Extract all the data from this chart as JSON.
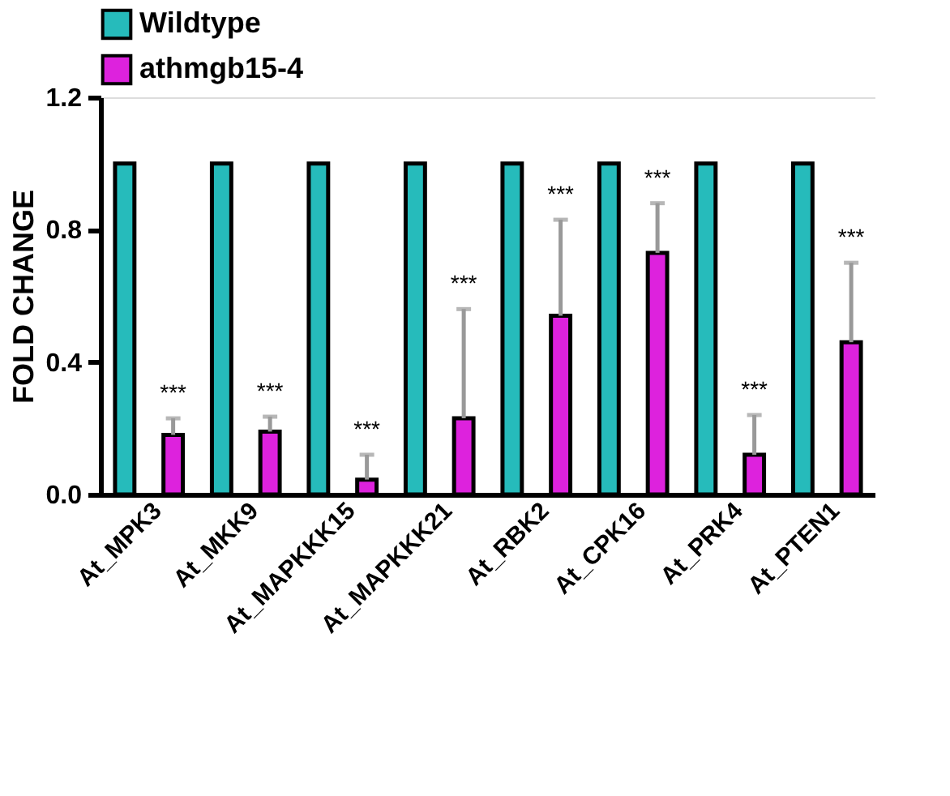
{
  "chart_data": {
    "type": "bar",
    "ylabel": "FOLD CHANGE",
    "categories": [
      "At_MPK3",
      "At_MKK9",
      "At_MAPKKK15",
      "At_MAPKKK21",
      "At_RBK2",
      "At_CPK16",
      "At_PRK4",
      "At_PTEN1"
    ],
    "series": [
      {
        "name": "Wildtype",
        "color": "#26bbbb",
        "values": [
          1.0,
          1.0,
          1.0,
          1.0,
          1.0,
          1.0,
          1.0,
          1.0
        ]
      },
      {
        "name": "athmgb15-4",
        "color": "#dd22dd",
        "values": [
          0.18,
          0.19,
          0.045,
          0.23,
          0.54,
          0.73,
          0.12,
          0.46
        ],
        "errors": [
          [
            0.18,
            0.23
          ],
          [
            0.19,
            0.235
          ],
          [
            0.045,
            0.12
          ],
          [
            0.23,
            0.56
          ],
          [
            0.54,
            0.83
          ],
          [
            0.73,
            0.88
          ],
          [
            0.12,
            0.24
          ],
          [
            0.46,
            0.7
          ]
        ]
      }
    ],
    "ylim": [
      0,
      1.2
    ],
    "yticks": [
      {
        "value": 0,
        "label": "0.0"
      },
      0.4,
      0.8,
      1.2
    ],
    "grid": false,
    "legend": "top",
    "annotations": [
      "***",
      "***",
      "***",
      "***",
      "***",
      "***",
      "***",
      "***"
    ]
  }
}
